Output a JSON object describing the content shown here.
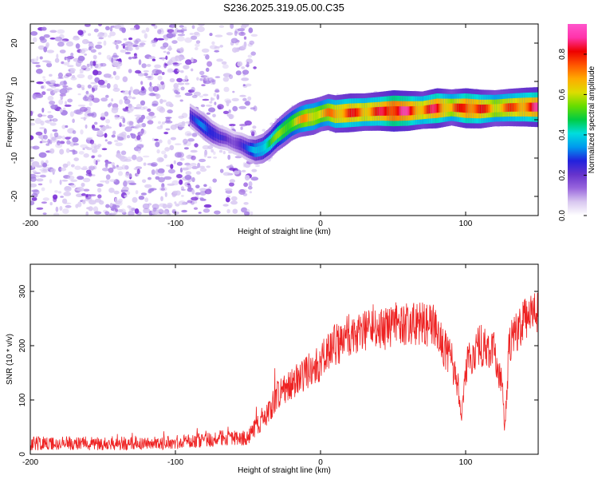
{
  "title": "S236.2025.319.05.00.C35",
  "colors": {
    "series": "#ee2222",
    "axis": "#000000",
    "colormap": [
      "#ffffff",
      "#d9c8f0",
      "#9966dd",
      "#6633cc",
      "#2222dd",
      "#0099ee",
      "#00dddd",
      "#00cc44",
      "#66dd00",
      "#dddd00",
      "#ffaa00",
      "#ff5500",
      "#ee0000",
      "#ff33aa",
      "#ff55cc"
    ]
  },
  "chart_data": [
    {
      "type": "heatmap",
      "name": "spectrogram",
      "xlabel": "Height of straight line (km)",
      "ylabel": "Frequency (Hz)",
      "xlim": [
        -200,
        150
      ],
      "ylim": [
        -25,
        25
      ],
      "xticks": [
        -200,
        -100,
        0,
        100
      ],
      "yticks": [
        -20,
        -10,
        0,
        10,
        20
      ],
      "colorbar": {
        "label": "Normalized spectral amplitude",
        "range": [
          0,
          0.95
        ],
        "ticks": [
          0.0,
          0.2,
          0.4,
          0.6,
          0.8
        ]
      },
      "ridge": {
        "x": [
          -90,
          -85,
          -80,
          -75,
          -70,
          -65,
          -60,
          -55,
          -50,
          -45,
          -40,
          -35,
          -30,
          -25,
          -20,
          -15,
          -10,
          -5,
          0,
          5,
          10,
          20,
          30,
          40,
          50,
          60,
          70,
          80,
          90,
          100,
          110,
          120,
          130,
          140,
          150
        ],
        "freq": [
          1.0,
          -0.5,
          -2.0,
          -3.5,
          -4.5,
          -5.0,
          -6.0,
          -6.5,
          -7.5,
          -8.0,
          -7.5,
          -6.0,
          -4.0,
          -2.5,
          -1.0,
          0.0,
          0.5,
          0.8,
          1.5,
          2.0,
          1.5,
          1.8,
          2.0,
          2.2,
          2.3,
          2.3,
          2.5,
          3.0,
          3.2,
          3.0,
          2.8,
          3.0,
          3.2,
          3.3,
          3.3
        ],
        "amplitude": [
          0.25,
          0.3,
          0.35,
          0.3,
          0.25,
          0.2,
          0.2,
          0.25,
          0.3,
          0.4,
          0.45,
          0.5,
          0.55,
          0.6,
          0.6,
          0.65,
          0.7,
          0.7,
          0.65,
          0.7,
          0.75,
          0.8,
          0.75,
          0.8,
          0.9,
          0.85,
          0.75,
          0.85,
          0.7,
          0.85,
          0.8,
          0.7,
          0.75,
          0.8,
          0.85
        ]
      },
      "noise_region_x": [
        -200,
        -45
      ]
    },
    {
      "type": "line",
      "name": "snr",
      "xlabel": "Height of straight line (km)",
      "ylabel": "SNR (10 * v/v)",
      "xlim": [
        -200,
        150
      ],
      "ylim": [
        0,
        350
      ],
      "xticks": [
        -200,
        -100,
        0,
        100
      ],
      "yticks": [
        0,
        100,
        200,
        300
      ],
      "trend": {
        "x": [
          -200,
          -150,
          -100,
          -80,
          -70,
          -60,
          -50,
          -45,
          -40,
          -35,
          -30,
          -20,
          -10,
          0,
          10,
          20,
          30,
          40,
          50,
          60,
          70,
          80,
          85,
          90,
          95,
          97,
          100,
          110,
          120,
          125,
          127,
          130,
          140,
          150
        ],
        "snr": [
          20,
          20,
          22,
          25,
          30,
          30,
          30,
          50,
          60,
          80,
          110,
          130,
          150,
          170,
          200,
          220,
          230,
          225,
          240,
          240,
          240,
          235,
          200,
          180,
          120,
          70,
          160,
          200,
          190,
          130,
          40,
          200,
          250,
          260
        ]
      },
      "noise_amplitude": 40
    }
  ]
}
